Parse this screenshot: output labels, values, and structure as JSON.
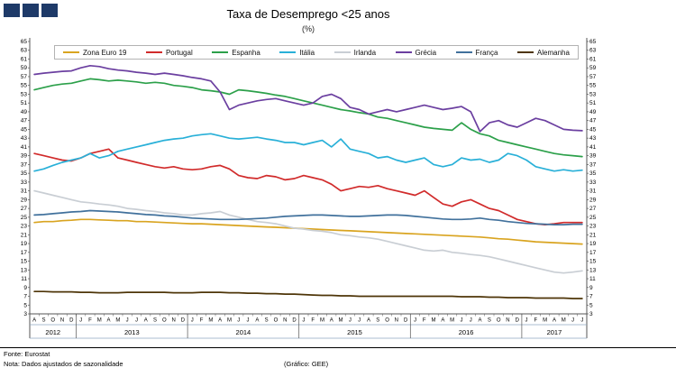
{
  "logo": {
    "color": "#1e3a68"
  },
  "chart_data": {
    "type": "line",
    "title": "Taxa de Desemprego <25 anos",
    "subtitle": "(%)",
    "ylim": [
      3,
      65
    ],
    "ytick_step": 2,
    "grid": false,
    "legend_position": "top-inside",
    "year_groups": [
      {
        "year": "2012",
        "months": [
          "A",
          "S",
          "O",
          "N",
          "D"
        ]
      },
      {
        "year": "2013",
        "months": [
          "J",
          "F",
          "M",
          "A",
          "M",
          "J",
          "J",
          "A",
          "S",
          "O",
          "N",
          "D"
        ]
      },
      {
        "year": "2014",
        "months": [
          "J",
          "F",
          "M",
          "A",
          "M",
          "J",
          "J",
          "A",
          "S",
          "O",
          "N",
          "D"
        ]
      },
      {
        "year": "2015",
        "months": [
          "J",
          "F",
          "M",
          "A",
          "M",
          "J",
          "J",
          "A",
          "S",
          "O",
          "N",
          "D"
        ]
      },
      {
        "year": "2016",
        "months": [
          "J",
          "F",
          "M",
          "A",
          "M",
          "J",
          "J",
          "A",
          "S",
          "O",
          "N",
          "D"
        ]
      },
      {
        "year": "2017",
        "months": [
          "J",
          "F",
          "M",
          "A",
          "M",
          "J",
          "J"
        ]
      }
    ],
    "series": [
      {
        "name": "Zona Euro 19",
        "color": "#D9A420",
        "values": [
          23.8,
          24.0,
          24.0,
          24.2,
          24.3,
          24.5,
          24.5,
          24.4,
          24.3,
          24.2,
          24.2,
          24.0,
          24.0,
          23.9,
          23.8,
          23.7,
          23.6,
          23.5,
          23.5,
          23.4,
          23.3,
          23.2,
          23.1,
          23.0,
          22.9,
          22.8,
          22.7,
          22.6,
          22.5,
          22.4,
          22.3,
          22.2,
          22.1,
          22.0,
          21.9,
          21.8,
          21.7,
          21.6,
          21.5,
          21.4,
          21.3,
          21.2,
          21.1,
          21.0,
          20.9,
          20.8,
          20.7,
          20.6,
          20.5,
          20.3,
          20.1,
          20.0,
          19.8,
          19.6,
          19.4,
          19.3,
          19.2,
          19.1,
          19.0,
          18.9
        ]
      },
      {
        "name": "Portugal",
        "color": "#D12B2B",
        "values": [
          39.5,
          39.0,
          38.5,
          38.0,
          37.8,
          38.5,
          39.5,
          40.0,
          40.5,
          38.5,
          38.0,
          37.5,
          37.0,
          36.5,
          36.2,
          36.5,
          36.0,
          35.8,
          36.0,
          36.5,
          36.8,
          36.0,
          34.5,
          34.0,
          33.8,
          34.5,
          34.2,
          33.5,
          33.8,
          34.5,
          34.0,
          33.5,
          32.5,
          31.0,
          31.5,
          32.0,
          31.8,
          32.2,
          31.5,
          31.0,
          30.5,
          30.0,
          31.0,
          29.5,
          28.0,
          27.5,
          28.5,
          29.0,
          28.0,
          27.0,
          26.5,
          25.5,
          24.5,
          24.0,
          23.5,
          23.3,
          23.5,
          23.8,
          23.8,
          23.8
        ]
      },
      {
        "name": "Espanha",
        "color": "#2CA04A",
        "values": [
          54.0,
          54.5,
          55.0,
          55.3,
          55.5,
          56.0,
          56.5,
          56.3,
          56.0,
          56.2,
          56.0,
          55.8,
          55.5,
          55.7,
          55.5,
          55.0,
          54.8,
          54.5,
          54.0,
          53.8,
          53.5,
          53.0,
          54.0,
          53.8,
          53.5,
          53.2,
          52.8,
          52.5,
          52.0,
          51.5,
          51.0,
          50.5,
          50.0,
          49.5,
          49.2,
          48.8,
          48.5,
          47.8,
          47.5,
          47.0,
          46.5,
          46.0,
          45.5,
          45.2,
          45.0,
          44.8,
          46.5,
          45.0,
          44.0,
          43.5,
          42.5,
          42.0,
          41.5,
          41.0,
          40.5,
          40.0,
          39.5,
          39.2,
          39.0,
          38.8
        ]
      },
      {
        "name": "Itália",
        "color": "#29B0D8",
        "values": [
          35.5,
          36.0,
          36.8,
          37.5,
          38.0,
          38.5,
          39.5,
          38.5,
          39.0,
          40.0,
          40.5,
          41.0,
          41.5,
          42.0,
          42.5,
          42.8,
          43.0,
          43.5,
          43.8,
          44.0,
          43.5,
          43.0,
          42.8,
          43.0,
          43.2,
          42.8,
          42.5,
          42.0,
          42.0,
          41.5,
          42.0,
          42.5,
          41.0,
          42.8,
          40.5,
          40.0,
          39.5,
          38.5,
          38.8,
          38.0,
          37.5,
          38.0,
          38.5,
          37.0,
          36.5,
          37.0,
          38.5,
          38.0,
          38.2,
          37.5,
          38.0,
          39.5,
          39.0,
          38.0,
          36.5,
          36.0,
          35.5,
          35.8,
          35.5,
          35.7
        ]
      },
      {
        "name": "Irlanda",
        "color": "#C9CED4",
        "values": [
          31.0,
          30.5,
          30.0,
          29.5,
          29.0,
          28.5,
          28.3,
          28.0,
          27.8,
          27.5,
          27.0,
          26.8,
          26.5,
          26.3,
          26.0,
          25.8,
          25.5,
          25.5,
          25.8,
          26.0,
          26.3,
          25.5,
          25.0,
          24.5,
          24.0,
          23.8,
          23.5,
          23.0,
          22.5,
          22.3,
          22.0,
          21.8,
          21.5,
          21.0,
          20.8,
          20.5,
          20.3,
          20.0,
          19.5,
          19.0,
          18.5,
          18.0,
          17.5,
          17.3,
          17.5,
          17.0,
          16.8,
          16.5,
          16.3,
          16.0,
          15.5,
          15.0,
          14.5,
          14.0,
          13.5,
          13.0,
          12.5,
          12.3,
          12.5,
          12.8
        ]
      },
      {
        "name": "Grécia",
        "color": "#6B3FA0",
        "values": [
          57.5,
          57.8,
          58.0,
          58.2,
          58.3,
          59.0,
          59.5,
          59.3,
          58.8,
          58.5,
          58.3,
          58.0,
          57.8,
          57.5,
          57.8,
          57.5,
          57.2,
          56.8,
          56.5,
          56.0,
          53.5,
          49.5,
          50.5,
          51.0,
          51.5,
          51.8,
          52.0,
          51.5,
          51.0,
          50.5,
          51.0,
          52.5,
          53.0,
          52.0,
          50.0,
          49.5,
          48.5,
          49.0,
          49.5,
          49.0,
          49.5,
          50.0,
          50.5,
          50.0,
          49.5,
          49.8,
          50.2,
          49.0,
          44.5,
          46.5,
          47.0,
          46.0,
          45.5,
          46.5,
          47.5,
          47.0,
          46.0,
          45.0,
          44.8,
          44.7
        ]
      },
      {
        "name": "França",
        "color": "#41719C",
        "values": [
          25.5,
          25.6,
          25.8,
          26.0,
          26.2,
          26.3,
          26.5,
          26.4,
          26.3,
          26.2,
          26.0,
          25.8,
          25.6,
          25.5,
          25.3,
          25.2,
          25.0,
          24.8,
          24.7,
          24.6,
          24.5,
          24.5,
          24.5,
          24.6,
          24.7,
          24.8,
          25.0,
          25.2,
          25.3,
          25.4,
          25.5,
          25.5,
          25.4,
          25.3,
          25.2,
          25.2,
          25.3,
          25.4,
          25.5,
          25.5,
          25.4,
          25.2,
          25.0,
          24.8,
          24.6,
          24.5,
          24.5,
          24.6,
          24.8,
          24.5,
          24.3,
          24.0,
          23.8,
          23.6,
          23.5,
          23.4,
          23.3,
          23.3,
          23.4,
          23.4
        ]
      },
      {
        "name": "Alemanha",
        "color": "#4E3508",
        "values": [
          8.1,
          8.1,
          8.0,
          8.0,
          8.0,
          7.9,
          7.9,
          7.8,
          7.8,
          7.8,
          7.9,
          7.9,
          7.9,
          7.9,
          7.9,
          7.8,
          7.8,
          7.8,
          7.9,
          7.9,
          7.9,
          7.8,
          7.8,
          7.7,
          7.7,
          7.6,
          7.6,
          7.5,
          7.5,
          7.4,
          7.3,
          7.2,
          7.2,
          7.1,
          7.1,
          7.0,
          7.0,
          7.0,
          7.0,
          7.0,
          7.0,
          7.0,
          7.0,
          7.0,
          7.0,
          7.0,
          6.9,
          6.9,
          6.9,
          6.8,
          6.8,
          6.7,
          6.7,
          6.7,
          6.6,
          6.6,
          6.6,
          6.6,
          6.5,
          6.5
        ]
      }
    ]
  },
  "footer": {
    "source": "Fonte: Eurostat",
    "note": "Nota: Dados ajustados de sazonalidade",
    "credit": "(Gráfico: GEE)"
  }
}
